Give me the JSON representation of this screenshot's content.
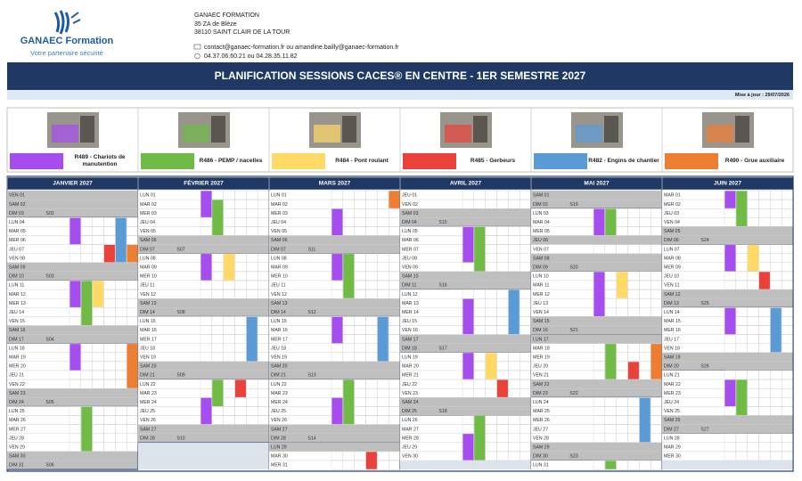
{
  "header": {
    "logo": {
      "name": "GANAEC Formation",
      "tagline": "Votre partenaire sécurité"
    },
    "company": "GANAEC FORMATION",
    "address": [
      "35 ZA de Blèze",
      "38110 SAINT CLAIR DE LA TOUR"
    ],
    "email": "contact@ganaec-formation.fr ou amandine.bailly@ganaec-formation.fr",
    "phone": "04.37.06.60.21 ou 04.28.35.11.82"
  },
  "title": "PLANIFICATION SESSIONS CACES® EN CENTRE - 1ER SEMESTRE 2027",
  "updated": "Mise à jour : 29/07/2026",
  "legend": [
    {
      "label": "R489 - Chariots de manutention",
      "color": "#a64df0"
    },
    {
      "label": "R486 - PEMP / nacelles",
      "color": "#6fbb46"
    },
    {
      "label": "R484 - Pont roulant",
      "color": "#ffd966"
    },
    {
      "label": "R485 - Gerbeurs",
      "color": "#e8423a"
    },
    {
      "label": "R482 - Engins de chantier",
      "color": "#5b9bd5"
    },
    {
      "label": "R490 - Grue auxiliaire",
      "color": "#ed7d31"
    }
  ],
  "months": [
    {
      "name": "JANVIER 2027",
      "days": [
        "VEN 01",
        "SAM 02",
        "DIM 03",
        "LUN 04",
        "MAR 05",
        "MER 06",
        "JEU 07",
        "VEN 08",
        "SAM 09",
        "DIM 10",
        "LUN 11",
        "MAR 12",
        "MER 13",
        "JEU 14",
        "VEN 15",
        "SAM 16",
        "DIM 17",
        "LUN 18",
        "MAR 19",
        "MER 20",
        "JEU 21",
        "VEN 22",
        "SAM 23",
        "DIM 24",
        "LUN 25",
        "MAR 26",
        "MER 27",
        "JEU 28",
        "VEN 29",
        "SAM 30",
        "DIM 31"
      ],
      "weeks": {
        "3": "S02",
        "10": "S03",
        "17": "S04",
        "24": "S05",
        "31": "S06"
      },
      "closed": [
        1,
        2,
        3,
        9,
        10,
        16,
        17,
        23,
        24,
        30,
        31
      ],
      "sessions": [
        [
          0,
          4,
          6
        ],
        [
          4,
          4,
          8
        ],
        [
          3,
          7,
          8
        ],
        [
          5,
          7,
          8
        ],
        [
          0,
          11,
          13
        ],
        [
          1,
          11,
          15
        ],
        [
          2,
          11,
          13
        ],
        [
          0,
          18,
          20
        ],
        [
          5,
          18,
          22
        ],
        [
          1,
          25,
          29
        ]
      ]
    },
    {
      "name": "FÉVRIER 2027",
      "days": [
        "LUN 01",
        "MAR 02",
        "MER 03",
        "JEU 04",
        "VEN 05",
        "SAM 06",
        "DIM 07",
        "LUN 08",
        "MAR 09",
        "MER 10",
        "JEU 11",
        "VEN 12",
        "SAM 13",
        "DIM 14",
        "LUN 15",
        "MAR 16",
        "MER 17",
        "JEU 18",
        "VEN 19",
        "SAM 20",
        "DIM 21",
        "LUN 22",
        "MAR 23",
        "MER 24",
        "JEU 25",
        "VEN 26",
        "SAM 27",
        "DIM 28"
      ],
      "weeks": {
        "7": "S07",
        "14": "S08",
        "21": "S09",
        "28": "S10"
      },
      "closed": [
        6,
        7,
        13,
        14,
        20,
        21,
        27,
        28
      ],
      "sessions": [
        [
          0,
          1,
          3
        ],
        [
          1,
          2,
          5
        ],
        [
          0,
          8,
          10
        ],
        [
          2,
          8,
          10
        ],
        [
          4,
          15,
          19
        ],
        [
          1,
          22,
          24
        ],
        [
          3,
          22,
          23
        ],
        [
          0,
          24,
          26
        ]
      ]
    },
    {
      "name": "MARS 2027",
      "days": [
        "LUN 01",
        "MAR 02",
        "MER 03",
        "JEU 04",
        "VEN 05",
        "SAM 06",
        "DIM 07",
        "LUN 08",
        "MAR 09",
        "MER 10",
        "JEU 11",
        "VEN 12",
        "SAM 13",
        "DIM 14",
        "LUN 15",
        "MAR 16",
        "MER 17",
        "JEU 18",
        "VEN 19",
        "SAM 20",
        "DIM 21",
        "LUN 22",
        "MAR 23",
        "MER 24",
        "JEU 25",
        "VEN 26",
        "SAM 27",
        "DIM 28",
        "LUN 29",
        "MAR 30",
        "MER 31"
      ],
      "weeks": {
        "7": "S11",
        "14": "S12",
        "21": "S13",
        "28": "S14"
      },
      "closed": [
        6,
        7,
        13,
        14,
        20,
        21,
        27,
        28,
        29
      ],
      "sessions": [
        [
          5,
          1,
          2
        ],
        [
          0,
          3,
          5
        ],
        [
          0,
          8,
          10
        ],
        [
          1,
          8,
          12
        ],
        [
          0,
          15,
          17
        ],
        [
          4,
          15,
          19
        ],
        [
          1,
          22,
          26
        ],
        [
          0,
          24,
          26
        ],
        [
          3,
          30,
          31
        ]
      ]
    },
    {
      "name": "AVRIL 2027",
      "days": [
        "JEU 01",
        "VEN 02",
        "SAM 03",
        "DIM 04",
        "LUN 05",
        "MAR 06",
        "MER 07",
        "JEU 08",
        "VEN 09",
        "SAM 10",
        "DIM 11",
        "LUN 12",
        "MAR 13",
        "MER 14",
        "JEU 15",
        "VEN 16",
        "SAM 17",
        "DIM 18",
        "LUN 19",
        "MAR 20",
        "MER 21",
        "JEU 22",
        "VEN 23",
        "SAM 24",
        "DIM 25",
        "LUN 26",
        "MAR 27",
        "MER 28",
        "JEU 29",
        "VEN 30"
      ],
      "weeks": {
        "4": "S15",
        "11": "S16",
        "18": "S17",
        "25": "S18"
      },
      "closed": [
        3,
        4,
        10,
        11,
        17,
        18,
        24,
        25
      ],
      "sessions": [
        [
          0,
          5,
          8
        ],
        [
          1,
          5,
          9
        ],
        [
          4,
          12,
          16
        ],
        [
          0,
          13,
          16
        ],
        [
          0,
          19,
          21
        ],
        [
          2,
          19,
          21
        ],
        [
          3,
          22,
          23
        ],
        [
          1,
          26,
          30
        ],
        [
          0,
          28,
          30
        ]
      ]
    },
    {
      "name": "MAI 2027",
      "days": [
        "SAM 01",
        "DIM 02",
        "LUN 03",
        "MAR 04",
        "MER 05",
        "JEU 06",
        "VEN 07",
        "SAM 08",
        "DIM 09",
        "LUN 10",
        "MAR 11",
        "MER 12",
        "JEU 13",
        "VEN 14",
        "SAM 15",
        "DIM 16",
        "LUN 17",
        "MAR 18",
        "MER 19",
        "JEU 20",
        "VEN 21",
        "SAM 22",
        "DIM 23",
        "LUN 24",
        "MAR 25",
        "MER 26",
        "JEU 27",
        "VEN 28",
        "SAM 29",
        "DIM 30",
        "LUN 31"
      ],
      "weeks": {
        "2": "S19",
        "9": "S20",
        "16": "S21",
        "23": "S22",
        "30": "S23"
      },
      "closed": [
        1,
        2,
        6,
        8,
        9,
        15,
        16,
        17,
        22,
        23,
        29,
        30
      ],
      "sessions": [
        [
          0,
          3,
          5
        ],
        [
          1,
          3,
          5
        ],
        [
          0,
          10,
          14
        ],
        [
          2,
          10,
          12
        ],
        [
          1,
          18,
          21
        ],
        [
          3,
          20,
          21
        ],
        [
          5,
          18,
          21
        ],
        [
          4,
          24,
          28
        ],
        [
          1,
          31,
          31
        ]
      ]
    },
    {
      "name": "JUIN 2027",
      "days": [
        "MAR 01",
        "MER 02",
        "JEU 03",
        "VEN 04",
        "SAM 05",
        "DIM 06",
        "LUN 07",
        "MAR 08",
        "MER 09",
        "JEU 10",
        "VEN 11",
        "SAM 12",
        "DIM 13",
        "LUN 14",
        "MAR 15",
        "MER 16",
        "JEU 17",
        "VEN 18",
        "SAM 19",
        "DIM 20",
        "LUN 21",
        "MAR 22",
        "MER 23",
        "JEU 24",
        "VEN 25",
        "SAM 26",
        "DIM 27",
        "LUN 28",
        "MAR 29",
        "MER 30"
      ],
      "weeks": {
        "6": "S24",
        "13": "S25",
        "20": "S26",
        "27": "S27"
      },
      "closed": [
        5,
        6,
        12,
        13,
        19,
        20,
        26,
        27
      ],
      "sessions": [
        [
          0,
          1,
          2
        ],
        [
          1,
          1,
          4
        ],
        [
          0,
          7,
          9
        ],
        [
          2,
          7,
          9
        ],
        [
          3,
          10,
          11
        ],
        [
          4,
          14,
          18
        ],
        [
          0,
          14,
          16
        ],
        [
          1,
          22,
          25
        ],
        [
          0,
          22,
          24
        ]
      ]
    }
  ]
}
